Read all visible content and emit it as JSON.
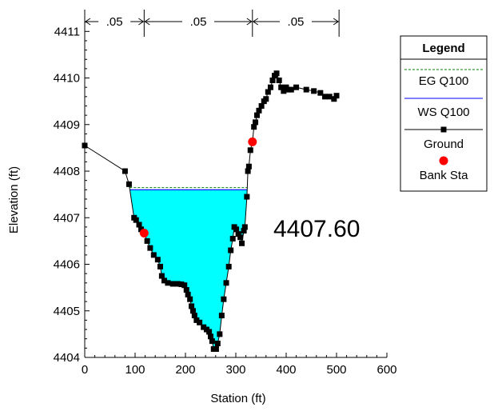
{
  "chart_data": {
    "type": "line",
    "xlabel": "Station (ft)",
    "ylabel": "Elevation (ft)",
    "xlim": [
      0,
      600
    ],
    "ylim": [
      4404,
      4411.4
    ],
    "x_ticks": [
      "0",
      "100",
      "200",
      "300",
      "400",
      "500",
      "600"
    ],
    "y_ticks": [
      "4404",
      "4405",
      "4406",
      "4407",
      "4408",
      "4409",
      "4410",
      "4411"
    ],
    "grid": false,
    "legend_position": "right",
    "legend": {
      "title": "Legend",
      "entries": [
        "EG Q100",
        "WS Q100",
        "Ground",
        "Bank Sta"
      ]
    },
    "water_surface_label": "4407.60",
    "ws_elevation": 4407.6,
    "eg_elevation": 4407.62,
    "mannings_n": [
      {
        "label": ".05",
        "from": 0,
        "to": 118
      },
      {
        "label": ".05",
        "from": 118,
        "to": 333
      },
      {
        "label": ".05",
        "from": 333,
        "to": 505
      }
    ],
    "bank_stations": [
      {
        "x": 118,
        "y": 4406.67
      },
      {
        "x": 333,
        "y": 4408.63
      }
    ],
    "series": [
      {
        "name": "Ground",
        "points": [
          [
            0,
            4408.55
          ],
          [
            80,
            4408.0
          ],
          [
            88,
            4407.72
          ],
          [
            98,
            4407.0
          ],
          [
            102,
            4406.95
          ],
          [
            108,
            4406.85
          ],
          [
            112,
            4406.75
          ],
          [
            118,
            4406.67
          ],
          [
            124,
            4406.5
          ],
          [
            130,
            4406.35
          ],
          [
            137,
            4406.2
          ],
          [
            145,
            4406.1
          ],
          [
            150,
            4405.95
          ],
          [
            153,
            4405.75
          ],
          [
            158,
            4405.65
          ],
          [
            165,
            4405.6
          ],
          [
            175,
            4405.58
          ],
          [
            185,
            4405.58
          ],
          [
            192,
            4405.57
          ],
          [
            198,
            4405.55
          ],
          [
            202,
            4405.45
          ],
          [
            205,
            4405.35
          ],
          [
            209,
            4405.25
          ],
          [
            212,
            4405.1
          ],
          [
            215,
            4405.0
          ],
          [
            218,
            4404.9
          ],
          [
            222,
            4404.8
          ],
          [
            228,
            4404.75
          ],
          [
            236,
            4404.65
          ],
          [
            242,
            4404.6
          ],
          [
            247,
            4404.55
          ],
          [
            250,
            4404.45
          ],
          [
            253,
            4404.35
          ],
          [
            256,
            4404.18
          ],
          [
            261,
            4404.18
          ],
          [
            264,
            4404.3
          ],
          [
            268,
            4404.5
          ],
          [
            272,
            4404.9
          ],
          [
            276,
            4405.25
          ],
          [
            281,
            4405.6
          ],
          [
            286,
            4405.95
          ],
          [
            290,
            4406.3
          ],
          [
            294,
            4406.55
          ],
          [
            297,
            4406.8
          ],
          [
            301,
            4406.75
          ],
          [
            305,
            4406.65
          ],
          [
            309,
            4406.58
          ],
          [
            312,
            4406.45
          ],
          [
            316,
            4406.72
          ],
          [
            318,
            4406.8
          ],
          [
            322,
            4407.45
          ],
          [
            324,
            4408.0
          ],
          [
            326,
            4408.1
          ],
          [
            329,
            4408.45
          ],
          [
            333,
            4408.63
          ],
          [
            336,
            4408.95
          ],
          [
            339,
            4409.05
          ],
          [
            342,
            4409.2
          ],
          [
            346,
            4409.3
          ],
          [
            351,
            4409.4
          ],
          [
            356,
            4409.5
          ],
          [
            360,
            4409.55
          ],
          [
            364,
            4409.7
          ],
          [
            369,
            4409.8
          ],
          [
            373,
            4409.95
          ],
          [
            377,
            4410.05
          ],
          [
            381,
            4410.1
          ],
          [
            386,
            4409.95
          ],
          [
            390,
            4409.8
          ],
          [
            395,
            4409.72
          ],
          [
            400,
            4409.8
          ],
          [
            405,
            4409.75
          ],
          [
            410,
            4409.75
          ],
          [
            420,
            4409.8
          ],
          [
            440,
            4409.75
          ],
          [
            455,
            4409.72
          ],
          [
            468,
            4409.68
          ],
          [
            477,
            4409.6
          ],
          [
            486,
            4409.6
          ],
          [
            495,
            4409.55
          ],
          [
            500,
            4409.62
          ]
        ]
      },
      {
        "name": "WS Q100",
        "y": 4407.6
      },
      {
        "name": "EG Q100",
        "y": 4407.62
      }
    ]
  }
}
